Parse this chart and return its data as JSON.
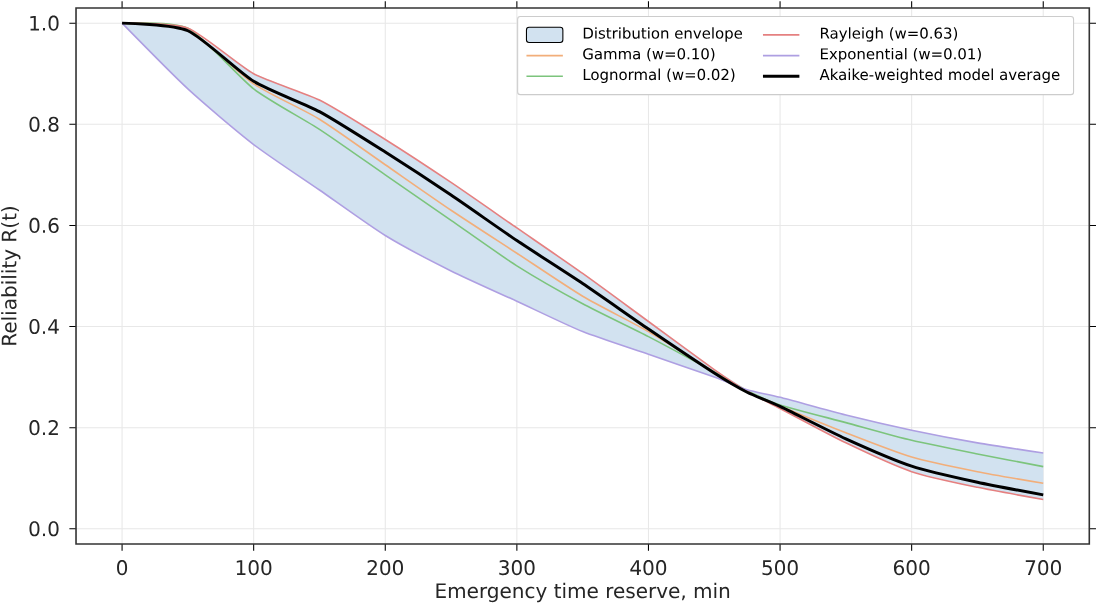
{
  "chart_data": {
    "type": "line",
    "xlabel": "Emergency time reserve, min",
    "ylabel": "Reliability R(t)",
    "x": [
      0,
      50,
      100,
      150,
      200,
      250,
      300,
      350,
      400,
      450,
      475,
      500,
      550,
      600,
      650,
      700
    ],
    "xlim": [
      -35,
      735
    ],
    "ylim": [
      -0.03,
      1.03
    ],
    "xticks": [
      0,
      100,
      200,
      300,
      400,
      500,
      600,
      700
    ],
    "yticks": [
      {
        "value": 0,
        "label": "0.0"
      },
      {
        "value": 0.2,
        "label": "0.2"
      },
      {
        "value": 0.4,
        "label": "0.4"
      },
      {
        "value": 0.6,
        "label": "0.6"
      },
      {
        "value": 0.8,
        "label": "0.8"
      },
      {
        "value": 1,
        "label": "1.0"
      }
    ],
    "grid": true,
    "legend": "top right",
    "series": [
      {
        "name": "Distribution envelope",
        "type": "area",
        "color": "#d2e2f0",
        "lower": [
          1,
          0.87,
          0.76,
          0.67,
          0.58,
          0.51,
          0.45,
          0.39,
          0.345,
          0.3,
          0.27,
          0.238,
          0.17,
          0.113,
          0.082,
          0.058
        ],
        "upper": [
          1,
          0.99,
          0.9,
          0.848,
          0.77,
          0.685,
          0.595,
          0.505,
          0.41,
          0.315,
          0.275,
          0.26,
          0.225,
          0.195,
          0.17,
          0.15
        ],
        "values": [
          null,
          null,
          null,
          null,
          null,
          null,
          null,
          null,
          null,
          null,
          null,
          null,
          null,
          null,
          null,
          null
        ]
      },
      {
        "name": "Gamma (w=0.10)",
        "color": "#f2ae7a",
        "values": [
          1,
          0.985,
          0.88,
          0.81,
          0.72,
          0.63,
          0.545,
          0.46,
          0.39,
          0.31,
          0.272,
          0.243,
          0.19,
          0.142,
          0.113,
          0.09
        ]
      },
      {
        "name": "Lognormal (w=0.02)",
        "color": "#7cc47c",
        "values": [
          1,
          0.99,
          0.87,
          0.79,
          0.7,
          0.61,
          0.52,
          0.445,
          0.38,
          0.31,
          0.273,
          0.245,
          0.21,
          0.175,
          0.148,
          0.123
        ]
      },
      {
        "name": "Rayleigh (w=0.63)",
        "color": "#e58080",
        "values": [
          1,
          0.99,
          0.9,
          0.848,
          0.77,
          0.685,
          0.595,
          0.505,
          0.41,
          0.315,
          0.272,
          0.238,
          0.17,
          0.113,
          0.082,
          0.058
        ]
      },
      {
        "name": "Exponential (w=0.01)",
        "color": "#ae9fe2",
        "values": [
          1,
          0.87,
          0.76,
          0.67,
          0.58,
          0.51,
          0.45,
          0.39,
          0.345,
          0.3,
          0.275,
          0.26,
          0.225,
          0.195,
          0.17,
          0.15
        ]
      },
      {
        "name": "Akaike-weighted model average",
        "color": "#000000",
        "values": [
          1,
          0.985,
          0.885,
          0.825,
          0.745,
          0.66,
          0.57,
          0.485,
          0.395,
          0.308,
          0.27,
          0.242,
          0.178,
          0.124,
          0.092,
          0.067
        ]
      }
    ]
  }
}
